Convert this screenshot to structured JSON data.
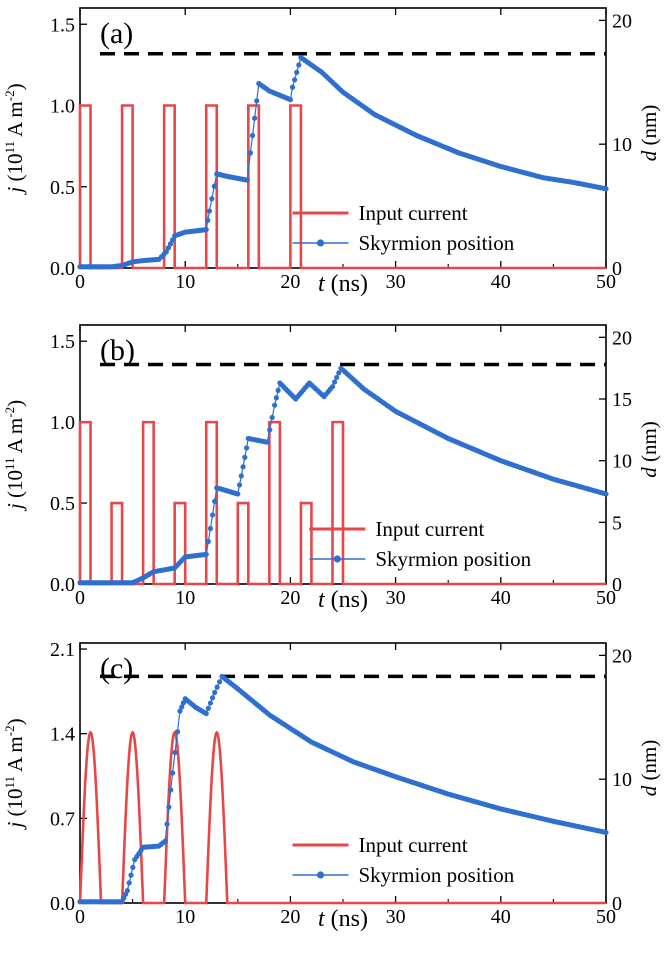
{
  "figure": {
    "panels": [
      {
        "tag": "(a)",
        "ylabel_left_prefix": "j",
        "ylabel_left_suffix": " (10",
        "ylabel_left_exp_num": "11",
        "ylabel_left_unit": " A m",
        "ylabel_left_exp_unit": "-2",
        "ylabel_left_close": ")",
        "ylabel_right_prefix": "d",
        "ylabel_right_unit": " (nm)",
        "xlabel_prefix": "t",
        "xlabel_unit": " (ns)",
        "legend_current": "Input current",
        "legend_skyrmion": "Skyrmion position"
      },
      {
        "tag": "(b)",
        "ylabel_left_prefix": "j",
        "ylabel_left_suffix": " (10",
        "ylabel_left_exp_num": "11",
        "ylabel_left_unit": " A m",
        "ylabel_left_exp_unit": "-2",
        "ylabel_left_close": ")",
        "ylabel_right_prefix": "d",
        "ylabel_right_unit": " (nm)",
        "xlabel_prefix": "t",
        "xlabel_unit": " (ns)",
        "legend_current": "Input current",
        "legend_skyrmion": "Skyrmion position"
      },
      {
        "tag": "(c)",
        "ylabel_left_prefix": "j",
        "ylabel_left_suffix": " (10",
        "ylabel_left_exp_num": "11",
        "ylabel_left_unit": " A m",
        "ylabel_left_exp_unit": "-2",
        "ylabel_left_close": ")",
        "ylabel_right_prefix": "d",
        "ylabel_right_unit": " (nm)",
        "xlabel_prefix": "t",
        "xlabel_unit": " (ns)",
        "legend_current": "Input current",
        "legend_skyrmion": "Skyrmion position"
      }
    ],
    "colors": {
      "current": "#e8474a",
      "skyrmion": "#2e6fcf",
      "threshold": "#000000"
    }
  },
  "chart_data": [
    {
      "type": "line",
      "title": "(a)",
      "xlabel": "t (ns)",
      "ylabel": "j (10^11 A m^-2)",
      "ylabel_right": "d (nm)",
      "xlim": [
        0,
        50
      ],
      "ylim": [
        0,
        1.6
      ],
      "ylim_right": [
        0,
        21
      ],
      "xticks": [
        0,
        10,
        20,
        30,
        40,
        50
      ],
      "yticks": [
        0.0,
        0.5,
        1.0,
        1.5
      ],
      "yticks_labels": [
        "0.0",
        "0.5",
        "1.0",
        "1.5"
      ],
      "yticks_right": [
        0,
        10,
        20
      ],
      "threshold_d": 17.3,
      "series": [
        {
          "name": "Input current",
          "axis": "left",
          "shape": "rect",
          "pulses": [
            [
              0,
              1,
              1.0
            ],
            [
              4,
              5,
              1.0
            ],
            [
              8,
              9,
              1.0
            ],
            [
              12,
              13,
              1.0
            ],
            [
              16,
              17,
              1.0
            ],
            [
              20,
              21,
              1.0
            ]
          ]
        },
        {
          "name": "Skyrmion position",
          "axis": "right",
          "points": [
            [
              0,
              0.1
            ],
            [
              3,
              0.1
            ],
            [
              4,
              0.2
            ],
            [
              5,
              0.5
            ],
            [
              6,
              0.6
            ],
            [
              7.5,
              0.7
            ],
            [
              8.2,
              1.3
            ],
            [
              9,
              2.6
            ],
            [
              10,
              2.9
            ],
            [
              12,
              3.1
            ],
            [
              12.3,
              4.6
            ],
            [
              13,
              7.6
            ],
            [
              14,
              7.4
            ],
            [
              15.9,
              7.1
            ],
            [
              16.2,
              9.3
            ],
            [
              17,
              14.9
            ],
            [
              18,
              14.3
            ],
            [
              20,
              13.6
            ],
            [
              20.2,
              14.6
            ],
            [
              21,
              17.0
            ],
            [
              23,
              15.8
            ],
            [
              25,
              14.2
            ],
            [
              28,
              12.4
            ],
            [
              32,
              10.7
            ],
            [
              36,
              9.3
            ],
            [
              40,
              8.2
            ],
            [
              44,
              7.3
            ],
            [
              47,
              6.9
            ],
            [
              50,
              6.4
            ]
          ]
        }
      ]
    },
    {
      "type": "line",
      "title": "(b)",
      "xlabel": "t (ns)",
      "ylabel": "j (10^11 A m^-2)",
      "ylabel_right": "d (nm)",
      "xlim": [
        0,
        50
      ],
      "ylim": [
        0,
        1.6
      ],
      "ylim_right": [
        0,
        21
      ],
      "xticks": [
        0,
        10,
        20,
        30,
        40,
        50
      ],
      "yticks": [
        0.0,
        0.5,
        1.0,
        1.5
      ],
      "yticks_labels": [
        "0.0",
        "0.5",
        "1.0",
        "1.5"
      ],
      "yticks_right": [
        0,
        5,
        10,
        15,
        20
      ],
      "threshold_d": 17.8,
      "series": [
        {
          "name": "Input current",
          "axis": "left",
          "shape": "rect",
          "pulses": [
            [
              0,
              1,
              1.0
            ],
            [
              3,
              4,
              0.5
            ],
            [
              6,
              7,
              1.0
            ],
            [
              9,
              10,
              0.5
            ],
            [
              12,
              13,
              1.0
            ],
            [
              15,
              16,
              0.5
            ],
            [
              18,
              19,
              1.0
            ],
            [
              21,
              22,
              0.5
            ],
            [
              24,
              25,
              1.0
            ]
          ]
        },
        {
          "name": "Skyrmion position",
          "axis": "right",
          "points": [
            [
              0,
              0.1
            ],
            [
              5,
              0.1
            ],
            [
              6,
              0.5
            ],
            [
              7,
              1.0
            ],
            [
              9,
              1.3
            ],
            [
              10,
              2.2
            ],
            [
              12,
              2.4
            ],
            [
              12.4,
              4.5
            ],
            [
              13,
              7.8
            ],
            [
              15,
              7.3
            ],
            [
              15.5,
              9.5
            ],
            [
              16,
              11.8
            ],
            [
              17.8,
              11.5
            ],
            [
              18.5,
              14.5
            ],
            [
              19,
              16.3
            ],
            [
              20.5,
              15.0
            ],
            [
              21.8,
              16.3
            ],
            [
              23.2,
              15.2
            ],
            [
              24,
              16.0
            ],
            [
              24.8,
              17.5
            ],
            [
              27,
              15.8
            ],
            [
              30,
              14.0
            ],
            [
              35,
              11.8
            ],
            [
              40,
              10.0
            ],
            [
              45,
              8.5
            ],
            [
              50,
              7.3
            ]
          ]
        }
      ]
    },
    {
      "type": "line",
      "title": "(c)",
      "xlabel": "t (ns)",
      "ylabel": "j (10^11 A m^-2)",
      "ylabel_right": "d (nm)",
      "xlim": [
        0,
        50
      ],
      "ylim": [
        0,
        2.15
      ],
      "ylim_right": [
        0,
        21
      ],
      "xticks": [
        0,
        10,
        20,
        30,
        40,
        50
      ],
      "yticks": [
        0.0,
        0.7,
        1.4,
        2.1
      ],
      "yticks_labels": [
        "0.0",
        "0.7",
        "1.4",
        "2.1"
      ],
      "yticks_right": [
        0,
        10,
        20
      ],
      "threshold_d": 18.3,
      "series": [
        {
          "name": "Input current",
          "axis": "left",
          "shape": "sine",
          "pulses": [
            [
              0,
              2,
              1.41
            ],
            [
              4,
              6,
              1.41
            ],
            [
              8,
              10,
              1.41
            ],
            [
              12,
              14,
              1.41
            ]
          ]
        },
        {
          "name": "Skyrmion position",
          "axis": "right",
          "points": [
            [
              0,
              0.1
            ],
            [
              4,
              0.1
            ],
            [
              4.5,
              1.0
            ],
            [
              5.2,
              3.5
            ],
            [
              6,
              4.5
            ],
            [
              7.5,
              4.6
            ],
            [
              8.1,
              5.0
            ],
            [
              8.8,
              10.5
            ],
            [
              9.5,
              15.5
            ],
            [
              10,
              16.5
            ],
            [
              11,
              15.8
            ],
            [
              12,
              15.3
            ],
            [
              12.8,
              17.0
            ],
            [
              13.5,
              18.3
            ],
            [
              15,
              17.3
            ],
            [
              18,
              15.2
            ],
            [
              22,
              13.0
            ],
            [
              26,
              11.4
            ],
            [
              30,
              10.2
            ],
            [
              35,
              8.8
            ],
            [
              40,
              7.6
            ],
            [
              45,
              6.6
            ],
            [
              50,
              5.7
            ]
          ]
        }
      ]
    }
  ]
}
